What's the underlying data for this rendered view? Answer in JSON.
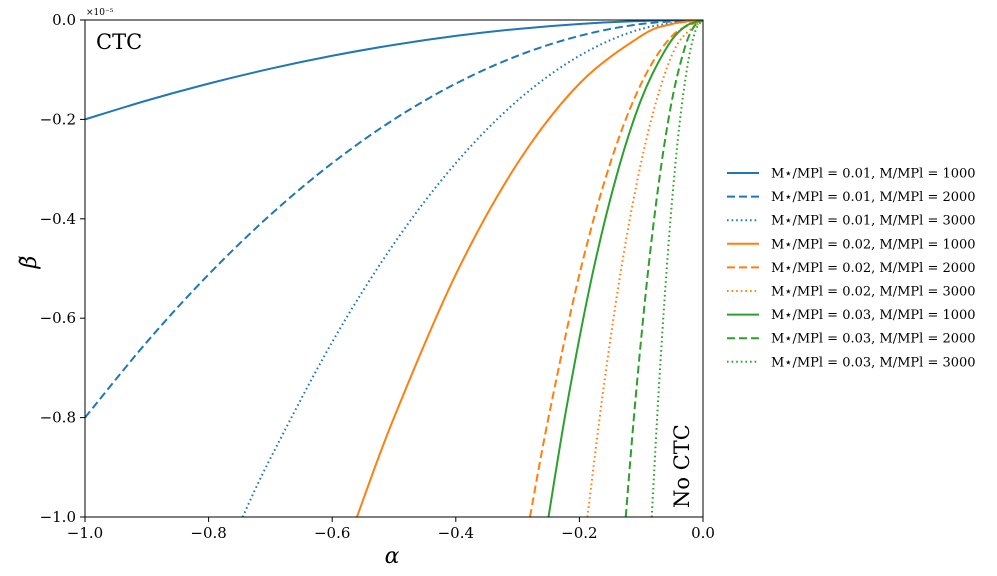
{
  "chart_data": {
    "type": "line",
    "xlabel": "α",
    "ylabel": "β̃",
    "xlim": [
      -1.0,
      0.0
    ],
    "ylim": [
      -1.0,
      0.0
    ],
    "y_scale_label": "×10⁻⁵",
    "xticks": [
      -1.0,
      -0.8,
      -0.6,
      -0.4,
      -0.2,
      0.0
    ],
    "xtick_labels": [
      "−1.0",
      "−0.8",
      "−0.6",
      "−0.4",
      "−0.2",
      "0.0"
    ],
    "yticks": [
      0.0,
      -0.2,
      -0.4,
      -0.6,
      -0.8,
      -1.0
    ],
    "ytick_labels": [
      "0.0",
      "−0.2",
      "−0.4",
      "−0.6",
      "−0.8",
      "−1.0"
    ],
    "annotations": [
      "CTC",
      "No CTC"
    ],
    "grid": false,
    "legend_position": "outside-right",
    "series": [
      {
        "name": "M⋆/MPl = 0.01,  M/MPl = 1000",
        "color": "#1f77b4",
        "dash": "solid",
        "x": [
          -1.0,
          -0.9,
          -0.8,
          -0.7,
          -0.6,
          -0.5,
          -0.4,
          -0.3,
          -0.2,
          -0.1,
          0.0
        ],
        "y": [
          -0.2,
          -0.162,
          -0.128,
          -0.098,
          -0.072,
          -0.05,
          -0.032,
          -0.018,
          -0.008,
          -0.002,
          0.0
        ]
      },
      {
        "name": "M⋆/MPl = 0.01,  M/MPl = 2000",
        "color": "#1f77b4",
        "dash": "dashed",
        "x": [
          -1.0,
          -0.9,
          -0.8,
          -0.7,
          -0.6,
          -0.5,
          -0.4,
          -0.3,
          -0.2,
          -0.1,
          0.0
        ],
        "y": [
          -0.8,
          -0.648,
          -0.512,
          -0.392,
          -0.288,
          -0.2,
          -0.128,
          -0.072,
          -0.032,
          -0.008,
          0.0
        ]
      },
      {
        "name": "M⋆/MPl = 0.01,  M/MPl = 3000",
        "color": "#1f77b4",
        "dash": "dotted",
        "x": [
          -0.745,
          -0.7,
          -0.6,
          -0.5,
          -0.4,
          -0.3,
          -0.2,
          -0.1,
          0.0
        ],
        "y": [
          -1.0,
          -0.882,
          -0.648,
          -0.45,
          -0.288,
          -0.162,
          -0.072,
          -0.018,
          0.0
        ]
      },
      {
        "name": "M⋆/MPl = 0.02,  M/MPl = 1000",
        "color": "#ff7f0e",
        "dash": "solid",
        "x": [
          -0.56,
          -0.5,
          -0.4,
          -0.3,
          -0.2,
          -0.1,
          -0.05,
          0.0
        ],
        "y": [
          -1.0,
          -0.8,
          -0.512,
          -0.288,
          -0.128,
          -0.032,
          -0.008,
          0.0
        ]
      },
      {
        "name": "M⋆/MPl = 0.02,  M/MPl = 2000",
        "color": "#ff7f0e",
        "dash": "dashed",
        "x": [
          -0.28,
          -0.25,
          -0.2,
          -0.15,
          -0.1,
          -0.05,
          0.0
        ],
        "y": [
          -1.0,
          -0.8,
          -0.512,
          -0.288,
          -0.128,
          -0.032,
          0.0
        ]
      },
      {
        "name": "M⋆/MPl = 0.02,  M/MPl = 3000",
        "color": "#ff7f0e",
        "dash": "dotted",
        "x": [
          -0.187,
          -0.16,
          -0.13,
          -0.1,
          -0.07,
          -0.04,
          0.0
        ],
        "y": [
          -1.0,
          -0.732,
          -0.483,
          -0.286,
          -0.14,
          -0.046,
          0.0
        ]
      },
      {
        "name": "M⋆/MPl = 0.03,  M/MPl = 1000",
        "color": "#2ca02c",
        "dash": "solid",
        "x": [
          -0.25,
          -0.22,
          -0.18,
          -0.14,
          -0.1,
          -0.06,
          -0.03,
          0.0
        ],
        "y": [
          -1.0,
          -0.774,
          -0.518,
          -0.314,
          -0.16,
          -0.058,
          -0.014,
          0.0
        ]
      },
      {
        "name": "M⋆/MPl = 0.03,  M/MPl = 2000",
        "color": "#2ca02c",
        "dash": "dashed",
        "x": [
          -0.125,
          -0.11,
          -0.09,
          -0.07,
          -0.05,
          -0.03,
          -0.015,
          0.0
        ],
        "y": [
          -1.0,
          -0.774,
          -0.518,
          -0.314,
          -0.16,
          -0.058,
          -0.014,
          0.0
        ]
      },
      {
        "name": "M⋆/MPl = 0.03,  M/MPl = 3000",
        "color": "#2ca02c",
        "dash": "dotted",
        "x": [
          -0.083,
          -0.07,
          -0.055,
          -0.04,
          -0.025,
          -0.012,
          0.0
        ],
        "y": [
          -1.0,
          -0.711,
          -0.439,
          -0.232,
          -0.091,
          -0.021,
          0.0
        ]
      }
    ]
  }
}
